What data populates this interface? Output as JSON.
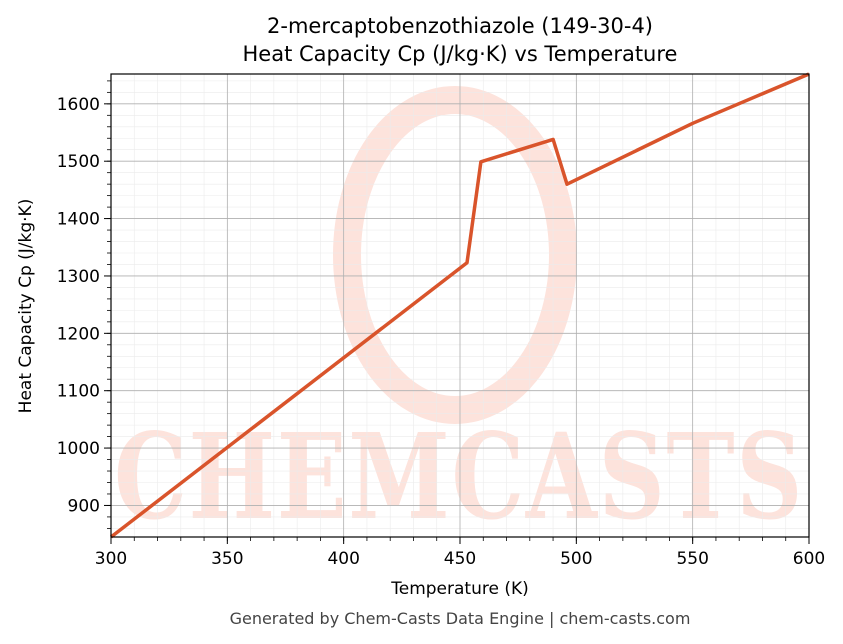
{
  "chart_data": {
    "type": "line",
    "title": "2-mercaptobenzothiazole (149-30-4)",
    "subtitle": "Heat Capacity Cp (J/kg·K) vs Temperature",
    "xlabel": "Temperature (K)",
    "ylabel": "Heat Capacity Cp (J/kg·K)",
    "xlim": [
      300,
      600
    ],
    "ylim": [
      845,
      1652
    ],
    "x_ticks": [
      300,
      350,
      400,
      450,
      500,
      550,
      600
    ],
    "y_ticks": [
      900,
      1000,
      1100,
      1200,
      1300,
      1400,
      1500,
      1600
    ],
    "grid": true,
    "line_color": "#d9542b",
    "series": [
      {
        "points": [
          {
            "x": 300,
            "y": 845
          },
          {
            "x": 453,
            "y": 1323
          },
          {
            "x": 459,
            "y": 1499
          },
          {
            "x": 490,
            "y": 1538
          },
          {
            "x": 496,
            "y": 1460
          },
          {
            "x": 550,
            "y": 1566
          },
          {
            "x": 600,
            "y": 1652
          }
        ]
      }
    ]
  },
  "watermark": {
    "text": "CHEMCASTS",
    "color": "#fde3dc"
  },
  "footer": "Generated by Chem-Casts Data Engine | chem-casts.com"
}
